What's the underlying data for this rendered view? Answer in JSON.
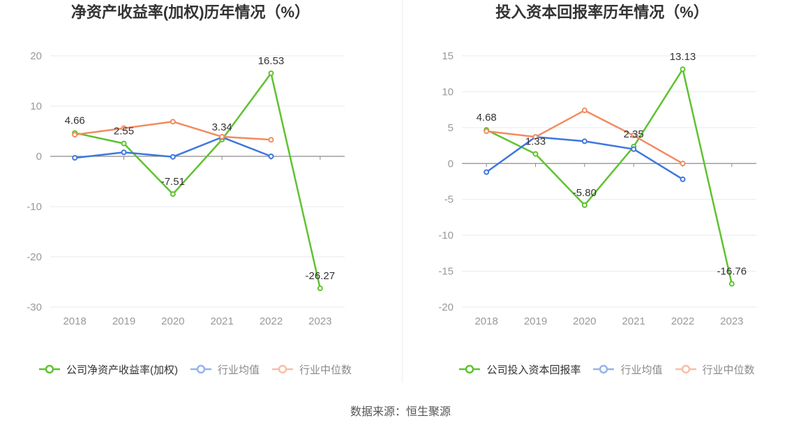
{
  "chart_data": [
    {
      "type": "line",
      "title": "净资产收益率(加权)历年情况（%）",
      "categories": [
        "2018",
        "2019",
        "2020",
        "2021",
        "2022",
        "2023"
      ],
      "ylim": [
        -30,
        20
      ],
      "yticks": [
        20,
        10,
        0,
        -10,
        -20,
        -30
      ],
      "grid": true,
      "legend": "bottom",
      "series": [
        {
          "name": "公司净资产收益率(加权)",
          "color": "#5fc22f",
          "values": [
            4.66,
            2.55,
            -7.51,
            3.34,
            16.53,
            -26.27
          ],
          "data_labels": [
            "4.66",
            "2.55",
            "-7.51",
            "3.34",
            "16.53",
            "-26.27"
          ]
        },
        {
          "name": "行业均值",
          "color": "#3e77de",
          "values": [
            -0.3,
            0.8,
            -0.1,
            3.8,
            0.0,
            null
          ]
        },
        {
          "name": "行业中位数",
          "color": "#f28b5f",
          "values": [
            4.3,
            5.6,
            6.9,
            3.9,
            3.3,
            null
          ]
        }
      ]
    },
    {
      "type": "line",
      "title": "投入资本回报率历年情况（%）",
      "categories": [
        "2018",
        "2019",
        "2020",
        "2021",
        "2022",
        "2023"
      ],
      "ylim": [
        -20,
        15
      ],
      "yticks": [
        15,
        10,
        5,
        0,
        -5,
        -10,
        -15,
        -20
      ],
      "grid": true,
      "legend": "bottom",
      "series": [
        {
          "name": "公司投入资本回报率",
          "color": "#5fc22f",
          "values": [
            4.68,
            1.33,
            -5.8,
            2.35,
            13.13,
            -16.76
          ],
          "data_labels": [
            "4.68",
            "1.33",
            "-5.80",
            "2.35",
            "13.13",
            "-16.76"
          ]
        },
        {
          "name": "行业均值",
          "color": "#3e77de",
          "values": [
            -1.2,
            3.7,
            3.1,
            2.0,
            -2.2,
            null
          ]
        },
        {
          "name": "行业中位数",
          "color": "#f28b5f",
          "values": [
            4.5,
            3.7,
            7.4,
            3.9,
            0.0,
            null
          ]
        }
      ]
    }
  ],
  "footer": {
    "source": "数据来源：恒生聚源"
  }
}
